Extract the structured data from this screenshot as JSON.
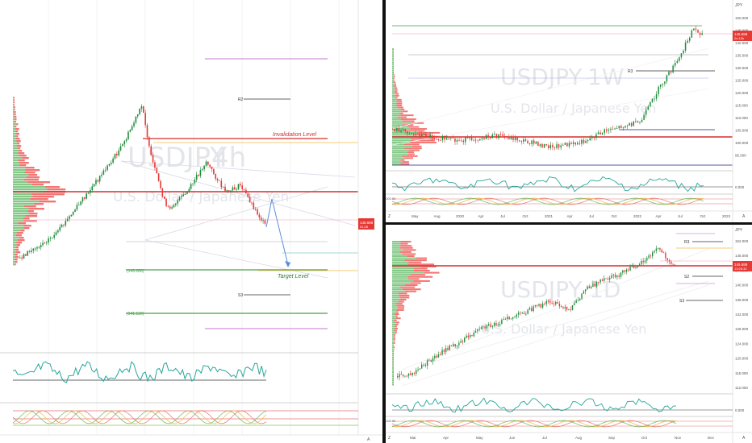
{
  "left": {
    "watermark": {
      "symbol": "USDJPY",
      "interval": "4h",
      "description": "U.S. Dollar / Japanese Yen"
    },
    "levels": {
      "invalidation": "Invalidation Level",
      "target": "Target Level",
      "r2": "R2",
      "s3": "S3",
      "box1": "(143.280)",
      "box2": "(141.130)"
    },
    "price_tag": {
      "value": "145.688",
      "sub": "01:28"
    },
    "axis_corner": "A"
  },
  "top_right": {
    "watermark": {
      "symbol": "USDJPY",
      "interval": "1W",
      "description": "U.S. Dollar / Japanese Yen"
    },
    "unit": "JPY",
    "y_ticks": [
      "150.000",
      "145.000",
      "140.000",
      "135.000",
      "130.000",
      "125.000",
      "120.000",
      "115.000",
      "110.000",
      "105.000",
      "100.000",
      "95.000"
    ],
    "x_ticks": [
      "May",
      "Aug",
      "2020",
      "Apr",
      "Jul",
      "Oct",
      "2021",
      "Apr",
      "Jul",
      "Oct",
      "2022",
      "Apr",
      "Jul",
      "Oct",
      "2023"
    ],
    "price_tag": {
      "value": "145.688",
      "sub": "2d 13h"
    },
    "r3": "R3",
    "osc_tick": "0.000",
    "osc_bottom": "100.00",
    "axis_corner": "A",
    "zoom_icon": "Z"
  },
  "bottom_right": {
    "watermark": {
      "symbol": "USDJPY",
      "interval": "1D",
      "description": "U.S. Dollar / Japanese Yen"
    },
    "unit": "JPY",
    "y_ticks": [
      "152.000",
      "148.000",
      "144.000",
      "140.000",
      "136.000",
      "132.000",
      "128.000",
      "124.000",
      "120.000",
      "116.000",
      "112.000"
    ],
    "x_ticks": [
      "Mar",
      "Apr",
      "May",
      "Jun",
      "Jul",
      "Aug",
      "Sep",
      "Oct",
      "Nov",
      "Dec"
    ],
    "price_tag": {
      "value": "145.688",
      "sub": "13:28:32"
    },
    "r3": "R3",
    "s2": "S2",
    "s3": "S3",
    "osc_tick": "0.000",
    "osc_bottom": "100.00",
    "axis_corner": "A",
    "zoom_icon": "Z"
  },
  "colors": {
    "up": "#26a69a",
    "candle_up": "#1e8c3a",
    "down": "#e53935",
    "level_red": "#d32f2f",
    "level_green": "#43a047",
    "level_purple": "#ce93d8",
    "projection": "#5a8fd8",
    "watermark": "#e3e5ea"
  },
  "chart_data": [
    {
      "type": "candlestick",
      "symbol": "USDJPY",
      "timeframe": "4h",
      "levels": [
        {
          "label": "Invalidation Level",
          "kind": "resistance"
        },
        {
          "label": "R2",
          "kind": "pivot"
        },
        {
          "label": "(143.280)",
          "kind": "support"
        },
        {
          "label": "Target Level",
          "kind": "target"
        },
        {
          "label": "S3",
          "kind": "pivot"
        },
        {
          "label": "(141.130)",
          "kind": "support"
        }
      ],
      "last_price": 145.688
    },
    {
      "type": "candlestick",
      "symbol": "USDJPY",
      "timeframe": "1W",
      "x_labels": [
        "May",
        "Aug",
        "2020",
        "Apr",
        "Jul",
        "Oct",
        "2021",
        "Apr",
        "Jul",
        "Oct",
        "2022",
        "Apr",
        "Jul",
        "Oct",
        "2023"
      ],
      "y_range": [
        95,
        152
      ],
      "last_price": 145.688
    },
    {
      "type": "candlestick",
      "symbol": "USDJPY",
      "timeframe": "1D",
      "x_labels": [
        "Mar",
        "Apr",
        "May",
        "Jun",
        "Jul",
        "Aug",
        "Sep",
        "Oct",
        "Nov",
        "Dec"
      ],
      "y_range": [
        112,
        153
      ],
      "last_price": 145.688
    }
  ]
}
